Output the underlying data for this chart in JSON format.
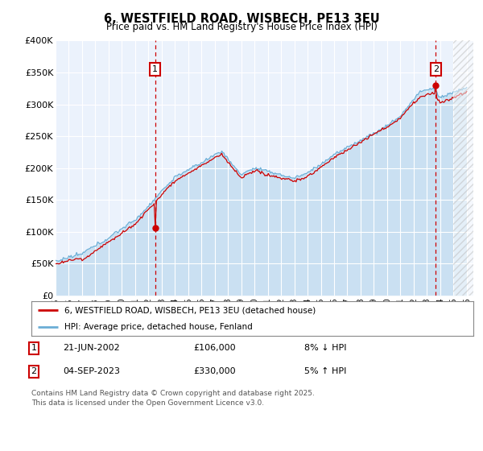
{
  "title": "6, WESTFIELD ROAD, WISBECH, PE13 3EU",
  "subtitle": "Price paid vs. HM Land Registry's House Price Index (HPI)",
  "ylim": [
    0,
    400000
  ],
  "yticks": [
    0,
    50000,
    100000,
    150000,
    200000,
    250000,
    300000,
    350000,
    400000
  ],
  "ytick_labels": [
    "£0",
    "£50K",
    "£100K",
    "£150K",
    "£200K",
    "£250K",
    "£300K",
    "£350K",
    "£400K"
  ],
  "xlim_start": 1995.0,
  "xlim_end": 2026.5,
  "hpi_color": "#6baed6",
  "price_color": "#CC0000",
  "marker1_x": 2002.5,
  "marker1_price": 106000,
  "marker2_x": 2023.67,
  "marker2_price": 330000,
  "legend_line1": "6, WESTFIELD ROAD, WISBECH, PE13 3EU (detached house)",
  "legend_line2": "HPI: Average price, detached house, Fenland",
  "footer": "Contains HM Land Registry data © Crown copyright and database right 2025.\nThis data is licensed under the Open Government Licence v3.0.",
  "plot_bg": "#EBF2FC",
  "fig_bg": "#FFFFFF"
}
